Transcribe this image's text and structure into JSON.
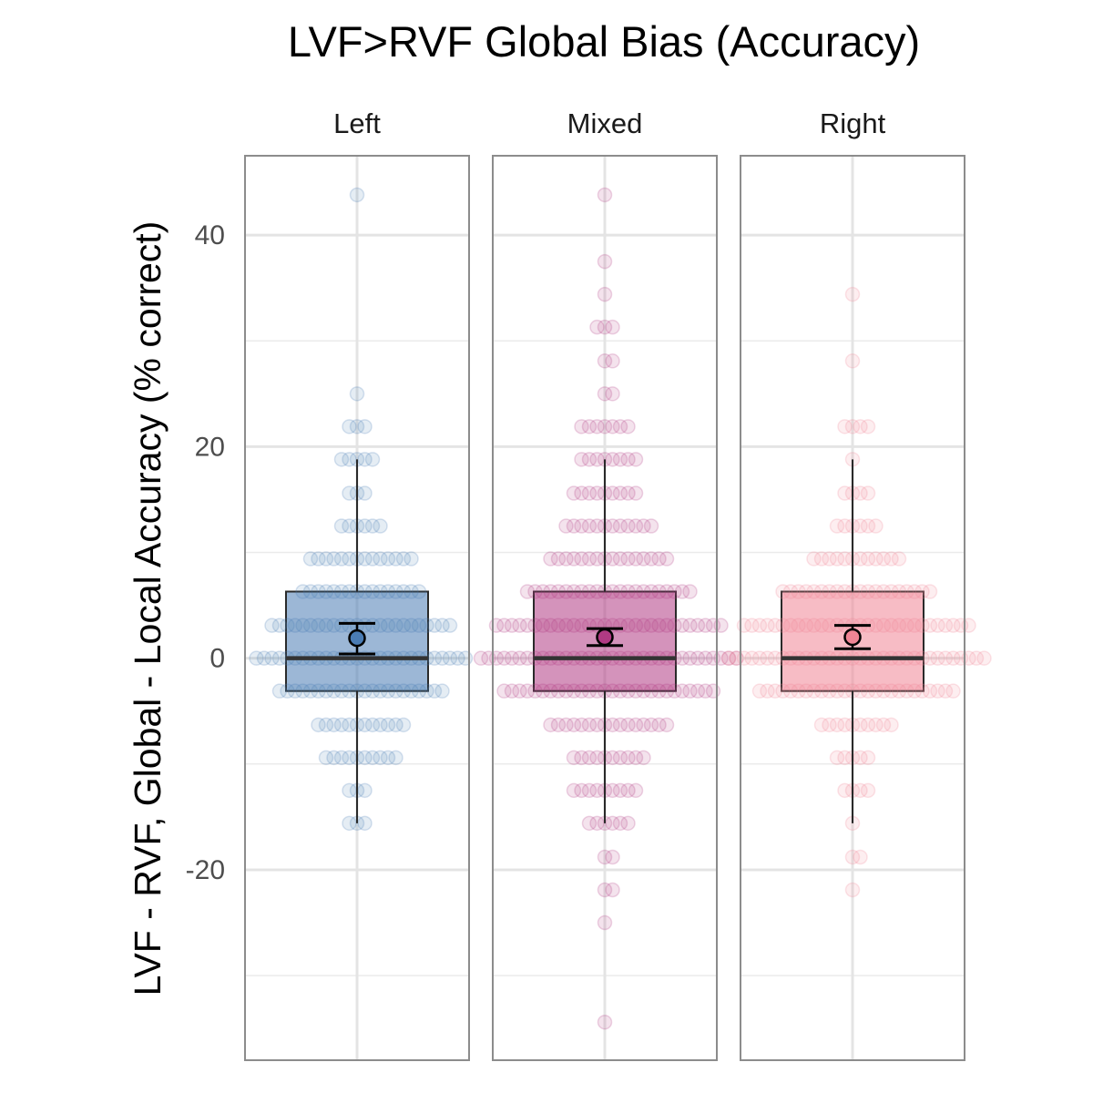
{
  "chart_data": {
    "type": "boxplot",
    "title": "LVF>RVF Global Bias (Accuracy)",
    "ylabel": "LVF - RVF, Global - Local Accuracy (% correct)",
    "xlabel": "",
    "ylim": [
      -38,
      47.5
    ],
    "yticks": [
      -20,
      0,
      20,
      40
    ],
    "grid": true,
    "colors": {
      "Left": "#4a7cb4",
      "Mixed": "#b03a83",
      "Right": "#f08595"
    },
    "panels": [
      {
        "facet": "Left",
        "box": {
          "q1": -3.1,
          "median": 0,
          "q3": 6.3,
          "whisker_low": -15.6,
          "whisker_high": 18.8
        },
        "mean": 1.9,
        "ci": [
          0.4,
          3.3
        ],
        "points": [
          {
            "y": 43.8,
            "n": 1
          },
          {
            "y": 25.0,
            "n": 1
          },
          {
            "y": 21.9,
            "n": 3
          },
          {
            "y": 18.8,
            "n": 5
          },
          {
            "y": 15.6,
            "n": 3
          },
          {
            "y": 12.5,
            "n": 6
          },
          {
            "y": 9.4,
            "n": 14
          },
          {
            "y": 6.3,
            "n": 16
          },
          {
            "y": 3.1,
            "n": 24
          },
          {
            "y": 0,
            "n": 28
          },
          {
            "y": -3.1,
            "n": 22
          },
          {
            "y": -6.3,
            "n": 12
          },
          {
            "y": -9.4,
            "n": 10
          },
          {
            "y": -12.5,
            "n": 3
          },
          {
            "y": -15.6,
            "n": 3
          }
        ]
      },
      {
        "facet": "Mixed",
        "box": {
          "q1": -3.1,
          "median": 0,
          "q3": 6.3,
          "whisker_low": -15.6,
          "whisker_high": 18.8
        },
        "mean": 2.0,
        "ci": [
          1.2,
          2.8
        ],
        "points": [
          {
            "y": 43.8,
            "n": 1
          },
          {
            "y": 37.5,
            "n": 1
          },
          {
            "y": 34.4,
            "n": 1
          },
          {
            "y": 31.3,
            "n": 3
          },
          {
            "y": 28.1,
            "n": 2
          },
          {
            "y": 25.0,
            "n": 2
          },
          {
            "y": 21.9,
            "n": 7
          },
          {
            "y": 18.8,
            "n": 8
          },
          {
            "y": 15.6,
            "n": 9
          },
          {
            "y": 12.5,
            "n": 12
          },
          {
            "y": 9.4,
            "n": 16
          },
          {
            "y": 6.3,
            "n": 22
          },
          {
            "y": 3.1,
            "n": 30
          },
          {
            "y": 0,
            "n": 34
          },
          {
            "y": -3.1,
            "n": 28
          },
          {
            "y": -6.3,
            "n": 16
          },
          {
            "y": -9.4,
            "n": 10
          },
          {
            "y": -12.5,
            "n": 9
          },
          {
            "y": -15.6,
            "n": 6
          },
          {
            "y": -18.8,
            "n": 2
          },
          {
            "y": -21.9,
            "n": 2
          },
          {
            "y": -25.0,
            "n": 1
          },
          {
            "y": -34.4,
            "n": 1
          }
        ]
      },
      {
        "facet": "Right",
        "box": {
          "q1": -3.1,
          "median": 0,
          "q3": 6.3,
          "whisker_low": -15.6,
          "whisker_high": 18.8
        },
        "mean": 2.0,
        "ci": [
          0.9,
          3.1
        ],
        "points": [
          {
            "y": 34.4,
            "n": 1
          },
          {
            "y": 28.1,
            "n": 1
          },
          {
            "y": 21.9,
            "n": 4
          },
          {
            "y": 18.8,
            "n": 1
          },
          {
            "y": 15.6,
            "n": 4
          },
          {
            "y": 12.5,
            "n": 6
          },
          {
            "y": 9.4,
            "n": 12
          },
          {
            "y": 6.3,
            "n": 20
          },
          {
            "y": 3.1,
            "n": 30
          },
          {
            "y": 0,
            "n": 34
          },
          {
            "y": -3.1,
            "n": 26
          },
          {
            "y": -6.3,
            "n": 10
          },
          {
            "y": -9.4,
            "n": 5
          },
          {
            "y": -12.5,
            "n": 4
          },
          {
            "y": -15.6,
            "n": 1
          },
          {
            "y": -18.8,
            "n": 2
          },
          {
            "y": -21.9,
            "n": 1
          }
        ]
      }
    ]
  }
}
